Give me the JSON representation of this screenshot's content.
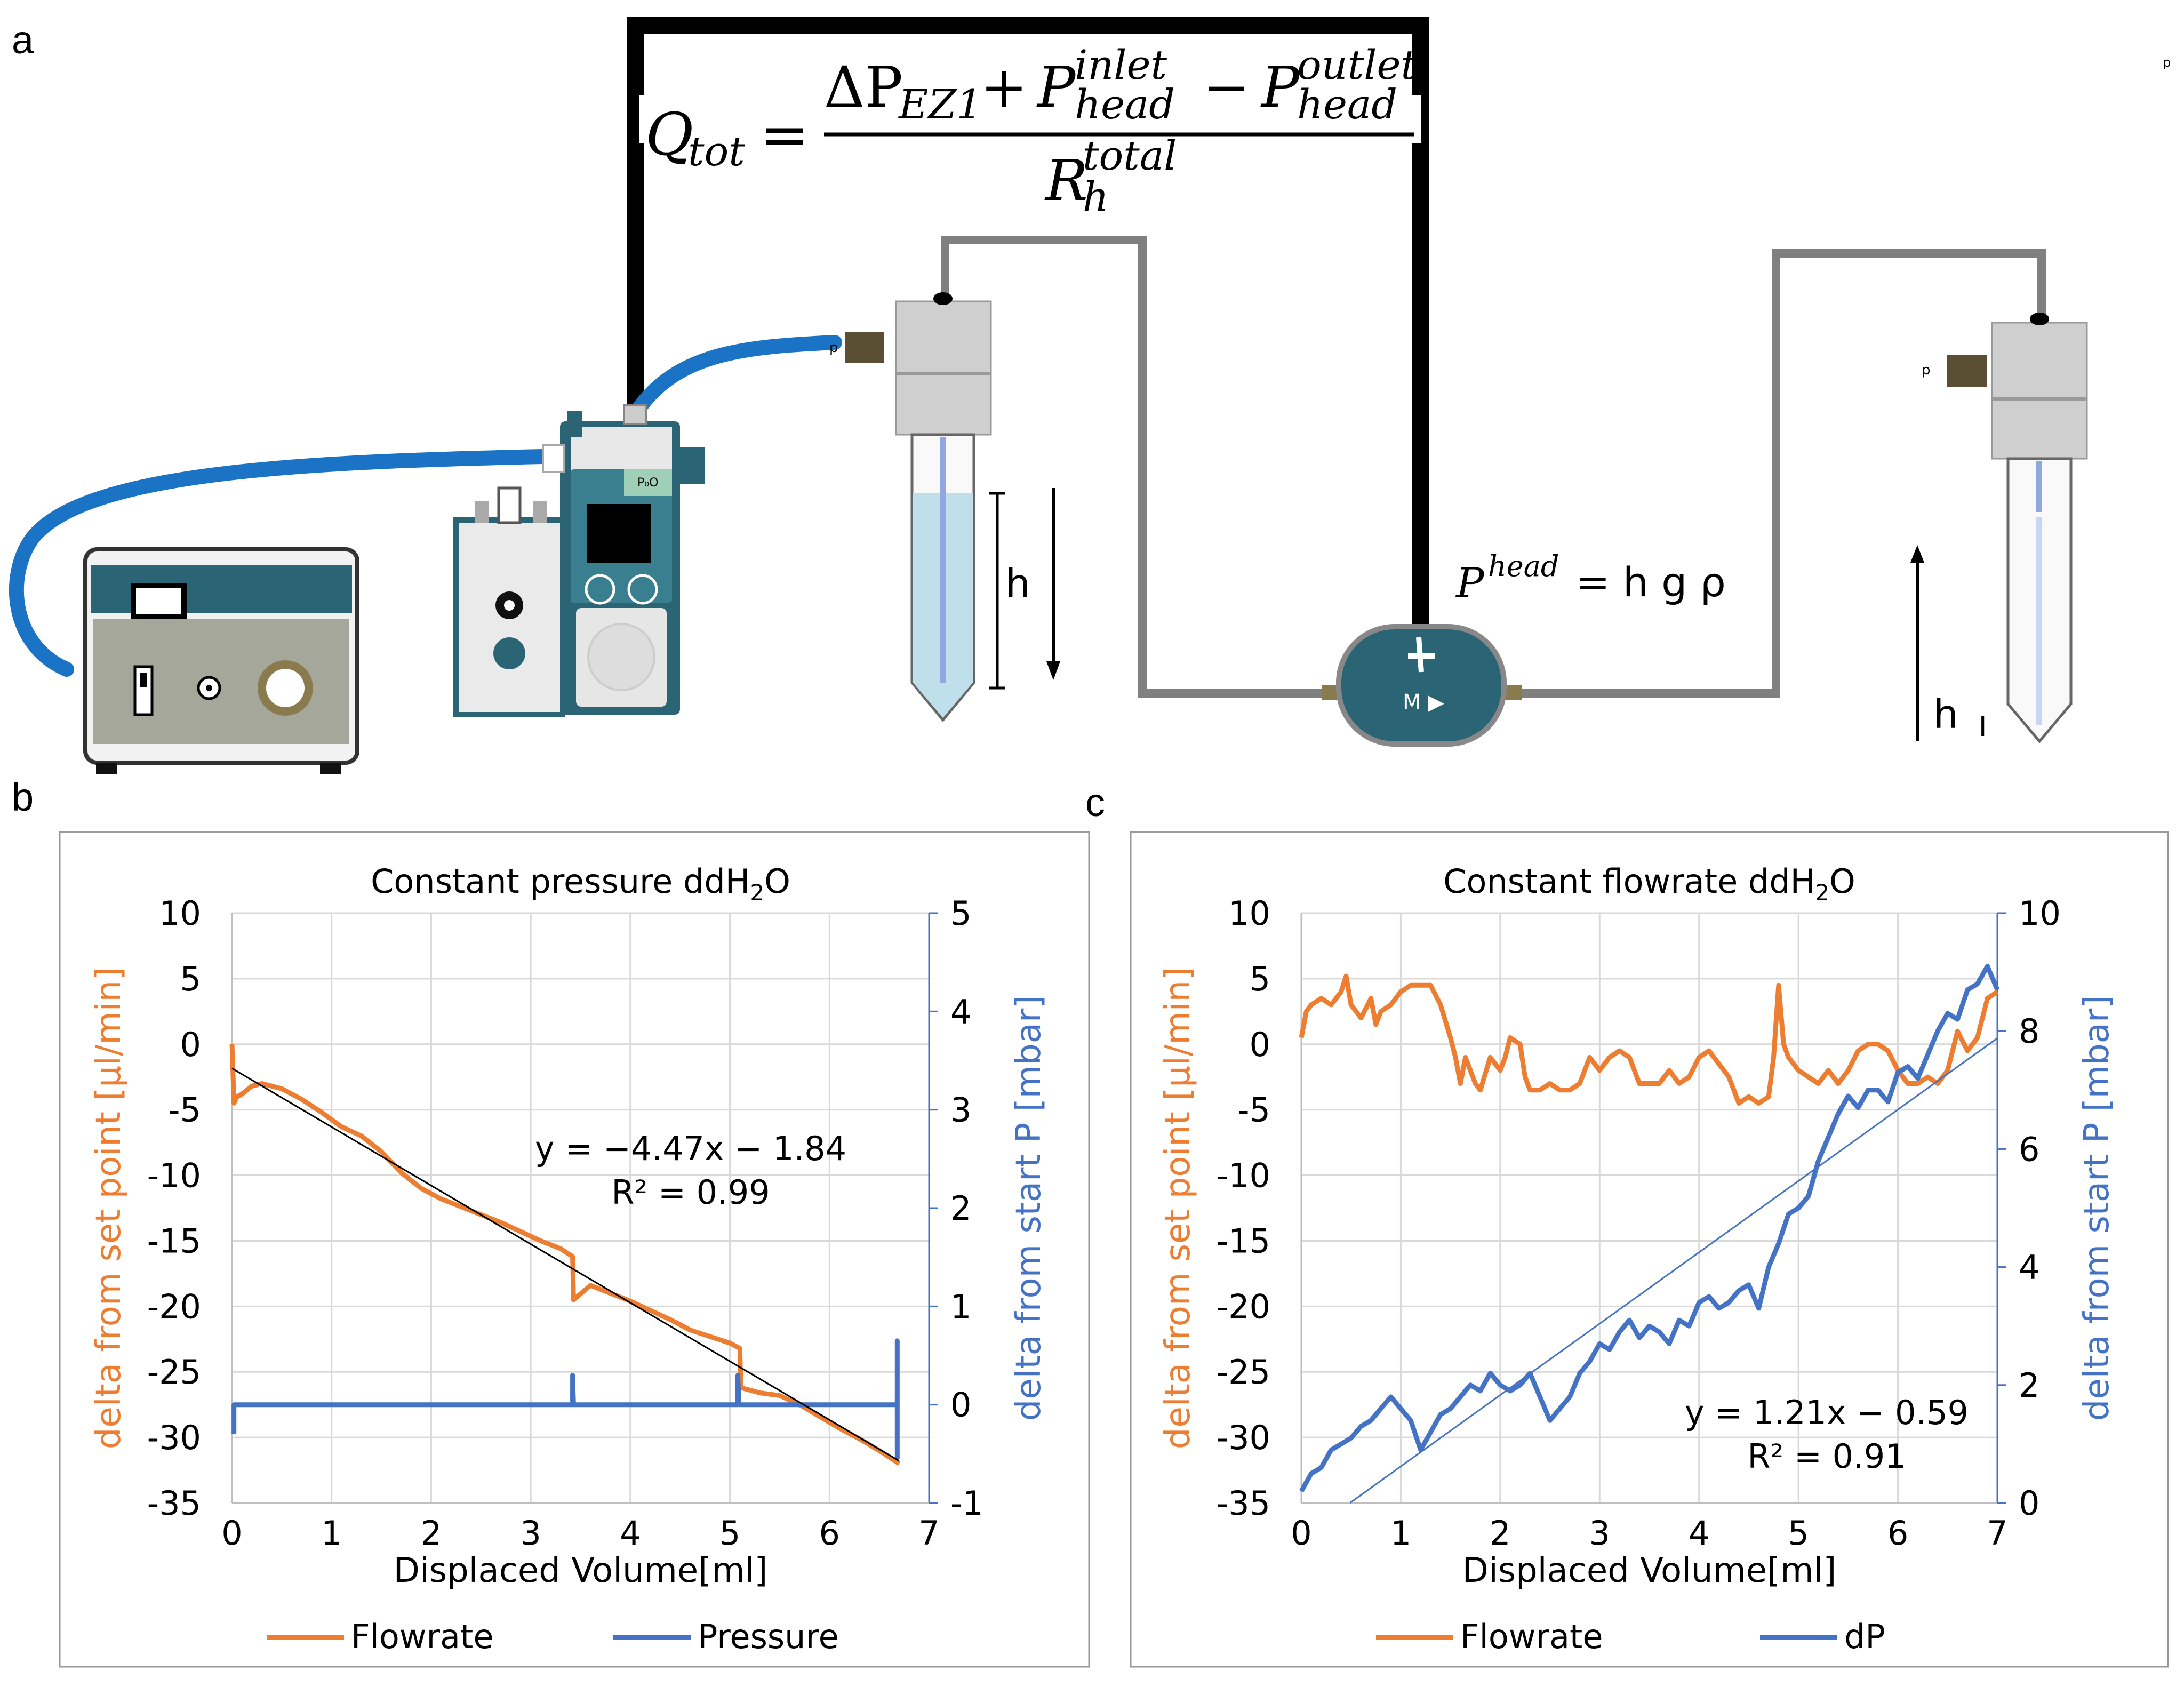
{
  "panels": {
    "a": "a",
    "b": "b",
    "c": "c"
  },
  "schematic": {
    "equation": {
      "lhs": "Q",
      "lhs_sub": "tot",
      "delta": "ΔP",
      "delta_sub": "EZ1",
      "plus": "+",
      "minus": "−",
      "equals": "=",
      "p": "P",
      "inlet_sup": "inlet",
      "head_sub": "head",
      "outlet_sup": "outlet",
      "r": "R",
      "r_sub": "h",
      "r_sup": "total"
    },
    "head_equation": {
      "p": "P",
      "sup": "head",
      "rhs": "= h g ρ"
    },
    "h_label_left": "h",
    "h_label_right": "h",
    "p_label": "p",
    "pump_label": "M ▶",
    "controller_label": "P₀O",
    "small_i": "I",
    "colors": {
      "tubing_blue": "#1a73c4",
      "teal": "#2b6575",
      "grey_tube": "#808080",
      "frame": "#000000"
    }
  },
  "chart_data": [
    {
      "type": "line",
      "title": "Constant pressure ddH",
      "title_sub": "2",
      "title_end": "O",
      "xlabel": "Displaced Volume[ml]",
      "ylabel": "delta from set point [µl/min]",
      "y2label": "delta from start P [mbar]",
      "xlim": [
        0,
        7
      ],
      "ylim": [
        -35,
        10
      ],
      "y2lim": [
        -1,
        5
      ],
      "xticks": [
        "0",
        "1",
        "2",
        "3",
        "4",
        "5",
        "6",
        "7"
      ],
      "yticks": [
        "10",
        "5",
        "0",
        "-5",
        "-10",
        "-15",
        "-20",
        "-25",
        "-30",
        "-35"
      ],
      "y2ticks": [
        "5",
        "4",
        "3",
        "2",
        "1",
        "0",
        "-1"
      ],
      "grid": true,
      "series": [
        {
          "name": "Flowrate",
          "axis": "left",
          "color": "#ed7d31",
          "x": [
            0,
            0.02,
            0.05,
            0.1,
            0.2,
            0.3,
            0.5,
            0.7,
            0.9,
            1.1,
            1.3,
            1.5,
            1.7,
            1.9,
            2.1,
            2.3,
            2.5,
            2.7,
            2.9,
            3.1,
            3.3,
            3.42,
            3.43,
            3.6,
            3.8,
            4.0,
            4.2,
            4.4,
            4.6,
            4.8,
            5.0,
            5.1,
            5.11,
            5.3,
            5.5,
            5.7,
            5.9,
            6.1,
            6.3,
            6.5,
            6.7
          ],
          "values": [
            0,
            -4.5,
            -4.0,
            -3.8,
            -3.2,
            -3.0,
            -3.4,
            -4.2,
            -5.2,
            -6.3,
            -7.0,
            -8.2,
            -9.8,
            -11.0,
            -11.8,
            -12.4,
            -13.0,
            -13.6,
            -14.3,
            -15.0,
            -15.6,
            -16.2,
            -19.5,
            -18.4,
            -19.0,
            -19.6,
            -20.3,
            -21.0,
            -21.8,
            -22.3,
            -22.8,
            -23.2,
            -26.2,
            -26.6,
            -26.8,
            -27.5,
            -28.4,
            -29.3,
            -30.1,
            -31.0,
            -32.0
          ]
        },
        {
          "name": "Pressure",
          "axis": "right",
          "color": "#4472c4",
          "x": [
            0.02,
            0.02,
            0.03,
            3.42,
            3.42,
            3.43,
            5.08,
            5.08,
            5.09,
            6.68,
            6.68,
            6.68
          ],
          "values": [
            -0.3,
            0.0,
            0.0,
            0.0,
            0.3,
            0.0,
            0.0,
            0.3,
            0.0,
            0.0,
            0.65,
            -0.55
          ]
        }
      ],
      "trendline": {
        "slope": -4.47,
        "intercept": -1.84,
        "x_range": [
          0,
          6.7
        ],
        "color": "#000000"
      },
      "annotation": {
        "equation": "y = −4.47x − 1.84",
        "r2": "R² = 0.99"
      },
      "legend": [
        "Flowrate",
        "Pressure"
      ],
      "legend_position": "bottom"
    },
    {
      "type": "line",
      "title": "Constant flowrate ddH",
      "title_sub": "2",
      "title_end": "O",
      "xlabel": "Displaced Volume[ml]",
      "ylabel": "delta from set point [µl/min]",
      "y2label": "delta from start P [mbar]",
      "xlim": [
        0,
        7
      ],
      "ylim": [
        -35,
        10
      ],
      "y2lim": [
        0,
        10
      ],
      "xticks": [
        "0",
        "1",
        "2",
        "3",
        "4",
        "5",
        "6",
        "7"
      ],
      "yticks": [
        "10",
        "5",
        "0",
        "-5",
        "-10",
        "-15",
        "-20",
        "-25",
        "-30",
        "-35"
      ],
      "y2ticks": [
        "10",
        "8",
        "6",
        "4",
        "2",
        "0"
      ],
      "grid": true,
      "series": [
        {
          "name": "Flowrate",
          "axis": "left",
          "color": "#ed7d31",
          "x": [
            0,
            0.05,
            0.1,
            0.2,
            0.3,
            0.4,
            0.45,
            0.5,
            0.6,
            0.7,
            0.75,
            0.8,
            0.9,
            1.0,
            1.1,
            1.2,
            1.3,
            1.4,
            1.5,
            1.55,
            1.6,
            1.65,
            1.7,
            1.75,
            1.8,
            1.9,
            2.0,
            2.05,
            2.1,
            2.2,
            2.25,
            2.3,
            2.4,
            2.5,
            2.6,
            2.7,
            2.8,
            2.9,
            3.0,
            3.1,
            3.2,
            3.3,
            3.4,
            3.5,
            3.6,
            3.7,
            3.8,
            3.9,
            4.0,
            4.1,
            4.2,
            4.3,
            4.4,
            4.5,
            4.6,
            4.7,
            4.75,
            4.8,
            4.85,
            4.9,
            5.0,
            5.1,
            5.2,
            5.3,
            5.4,
            5.5,
            5.6,
            5.7,
            5.8,
            5.9,
            6.0,
            6.1,
            6.2,
            6.3,
            6.4,
            6.5,
            6.6,
            6.7,
            6.8,
            6.9,
            7.0
          ],
          "values": [
            0.5,
            2.5,
            3.0,
            3.5,
            3.0,
            4.0,
            5.2,
            3.0,
            2.0,
            3.5,
            1.5,
            2.5,
            3.0,
            4.0,
            4.5,
            4.5,
            4.5,
            3.0,
            0.5,
            -1.0,
            -3.0,
            -1.0,
            -2.0,
            -3.0,
            -3.5,
            -1.0,
            -2.0,
            -1.0,
            0.5,
            0.0,
            -2.5,
            -3.5,
            -3.5,
            -3.0,
            -3.5,
            -3.5,
            -3.0,
            -1.0,
            -2.0,
            -1.0,
            -0.5,
            -1.0,
            -3.0,
            -3.0,
            -3.0,
            -2.0,
            -3.0,
            -2.5,
            -1.0,
            -0.5,
            -1.5,
            -2.5,
            -4.5,
            -4.0,
            -4.5,
            -4.0,
            -1.0,
            4.5,
            0.0,
            -1.0,
            -2.0,
            -2.5,
            -3.0,
            -2.0,
            -3.0,
            -2.0,
            -0.5,
            0.0,
            0.0,
            -0.5,
            -2.0,
            -3.0,
            -3.0,
            -2.5,
            -3.0,
            -2.0,
            1.0,
            -0.5,
            0.5,
            3.5,
            4.0
          ]
        },
        {
          "name": "dP",
          "axis": "right",
          "color": "#4472c4",
          "x": [
            0,
            0.1,
            0.2,
            0.3,
            0.4,
            0.5,
            0.6,
            0.7,
            0.8,
            0.9,
            1.0,
            1.1,
            1.2,
            1.3,
            1.4,
            1.5,
            1.6,
            1.7,
            1.8,
            1.9,
            2.0,
            2.1,
            2.2,
            2.3,
            2.4,
            2.5,
            2.6,
            2.7,
            2.8,
            2.9,
            3.0,
            3.1,
            3.2,
            3.3,
            3.4,
            3.5,
            3.6,
            3.7,
            3.8,
            3.9,
            4.0,
            4.1,
            4.2,
            4.3,
            4.4,
            4.5,
            4.6,
            4.7,
            4.8,
            4.9,
            5.0,
            5.1,
            5.2,
            5.3,
            5.4,
            5.5,
            5.6,
            5.7,
            5.8,
            5.9,
            6.0,
            6.1,
            6.2,
            6.3,
            6.4,
            6.5,
            6.6,
            6.7,
            6.8,
            6.9,
            7.0
          ],
          "values": [
            0.2,
            0.5,
            0.6,
            0.9,
            1.0,
            1.1,
            1.3,
            1.4,
            1.6,
            1.8,
            1.6,
            1.4,
            0.9,
            1.2,
            1.5,
            1.6,
            1.8,
            2.0,
            1.9,
            2.2,
            2.0,
            1.9,
            2.0,
            2.2,
            1.8,
            1.4,
            1.6,
            1.8,
            2.2,
            2.4,
            2.7,
            2.6,
            2.9,
            3.1,
            2.8,
            3.0,
            2.9,
            2.7,
            3.1,
            3.0,
            3.4,
            3.5,
            3.3,
            3.4,
            3.6,
            3.7,
            3.3,
            4.0,
            4.4,
            4.9,
            5.0,
            5.2,
            5.8,
            6.2,
            6.6,
            6.9,
            6.7,
            7.0,
            7.0,
            6.8,
            7.3,
            7.4,
            7.2,
            7.6,
            8.0,
            8.3,
            8.2,
            8.7,
            8.8,
            9.1,
            8.7
          ]
        }
      ],
      "trendline": {
        "slope": 1.21,
        "intercept": -0.59,
        "x_range": [
          0.49,
          7
        ],
        "color": "#4472c4"
      },
      "annotation": {
        "equation": "y = 1.21x − 0.59",
        "r2": "R² = 0.91"
      },
      "legend": [
        "Flowrate",
        "dP"
      ],
      "legend_position": "bottom"
    }
  ]
}
